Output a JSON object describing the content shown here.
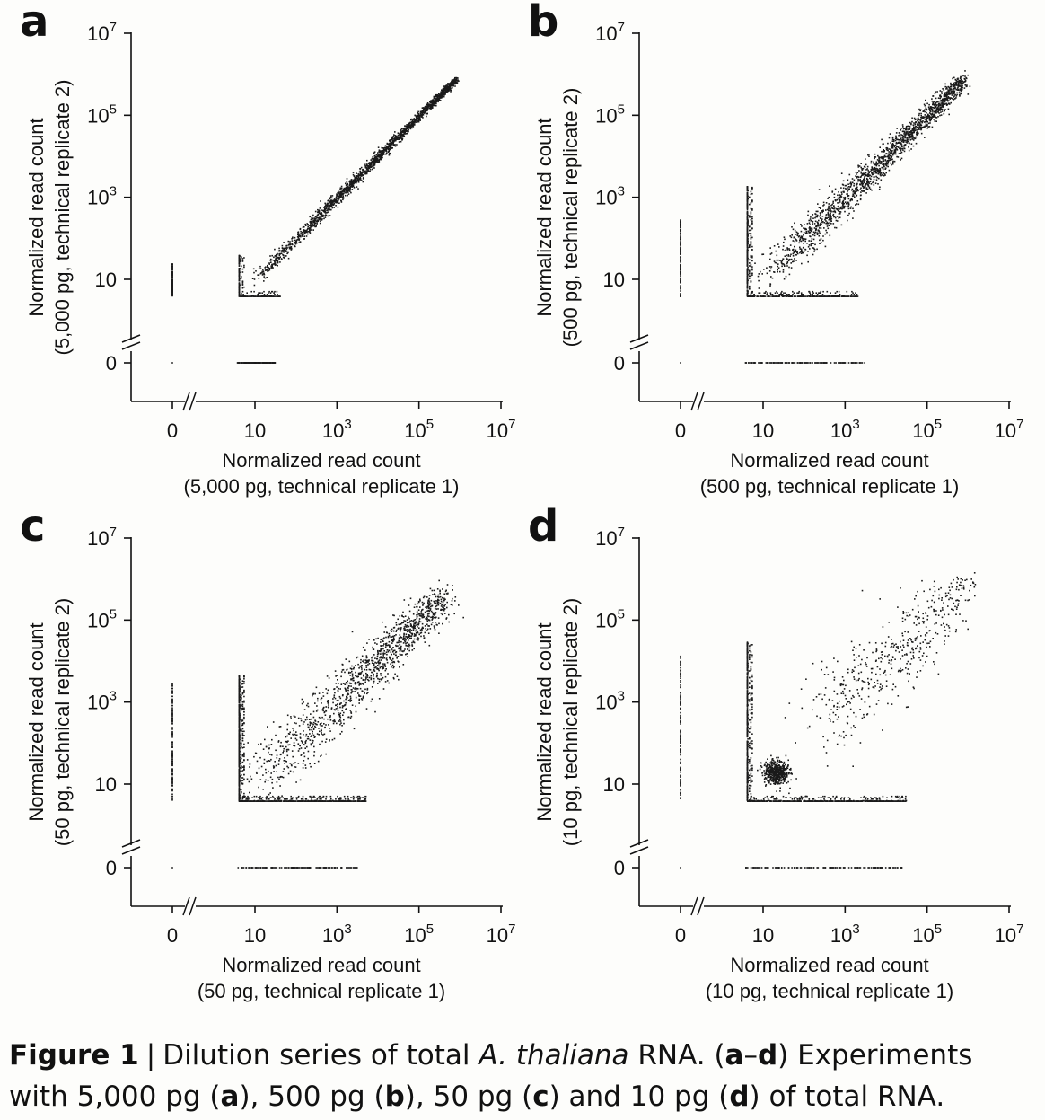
{
  "caption": {
    "label": "Figure 1",
    "separator": "|",
    "text_before_species": "Dilution series of total",
    "species": "A. thaliana",
    "text_after_species": "RNA. (",
    "range_a": "a",
    "range_dash": "–",
    "range_d": "d",
    "text_mid": ") Experiments with 5,000 pg (",
    "p_a": "a",
    "t1": "), 500 pg (",
    "p_b": "b",
    "t2": "), 50 pg (",
    "p_c": "c",
    "t3": ") and 10 pg (",
    "p_d": "d",
    "t4": ") of total RNA."
  },
  "chart_data": [
    {
      "panel": "a",
      "type": "scatter",
      "xlabel": [
        "Normalized read count",
        "(5,000 pg, technical replicate 1)"
      ],
      "ylabel": [
        "Normalized read count",
        "(5,000 pg, technical replicate 2)"
      ],
      "scale": "log10 with zero break",
      "xlim": [
        0,
        10000000
      ],
      "ylim": [
        0,
        10000000
      ],
      "x_ticks": [
        "0",
        "10",
        "10^3",
        "10^5",
        "10^7"
      ],
      "y_ticks": [
        "0",
        "10",
        "10^3",
        "10^5",
        "10^7"
      ],
      "point_cloud": {
        "diagonal_max": 800000,
        "low_count_spread_max": 40,
        "zero_row_max": 30,
        "zero_col_max": 25,
        "density": "tight along diagonal"
      }
    },
    {
      "panel": "b",
      "type": "scatter",
      "xlabel": [
        "Normalized read count",
        "(500 pg, technical replicate 1)"
      ],
      "ylabel": [
        "Normalized read count",
        "(500 pg, technical replicate 2)"
      ],
      "scale": "log10 with zero break",
      "xlim": [
        0,
        10000000
      ],
      "ylim": [
        0,
        10000000
      ],
      "x_ticks": [
        "0",
        "10",
        "10^3",
        "10^5",
        "10^7"
      ],
      "y_ticks": [
        "0",
        "10",
        "10^3",
        "10^5",
        "10^7"
      ],
      "point_cloud": {
        "diagonal_max": 800000,
        "low_count_spread_max": 2000,
        "zero_row_max": 3000,
        "zero_col_max": 300,
        "density": "moderate spread at low counts"
      }
    },
    {
      "panel": "c",
      "type": "scatter",
      "xlabel": [
        "Normalized read count",
        "(50 pg, technical replicate 1)"
      ],
      "ylabel": [
        "Normalized read count",
        "(50 pg, technical replicate 2)"
      ],
      "scale": "log10 with zero break",
      "xlim": [
        0,
        10000000
      ],
      "ylim": [
        0,
        10000000
      ],
      "x_ticks": [
        "0",
        "10",
        "10^3",
        "10^5",
        "10^7"
      ],
      "y_ticks": [
        "0",
        "10",
        "10^3",
        "10^5",
        "10^7"
      ],
      "point_cloud": {
        "diagonal_max": 400000,
        "low_count_spread_max": 5000,
        "zero_row_max": 3000,
        "zero_col_max": 3000,
        "density": "wide spread below 10^4"
      }
    },
    {
      "panel": "d",
      "type": "scatter",
      "xlabel": [
        "Normalized read count",
        "(10 pg, technical replicate 1)"
      ],
      "ylabel": [
        "Normalized read count",
        "(10 pg, technical replicate 2)"
      ],
      "scale": "log10 with zero break",
      "xlim": [
        0,
        10000000
      ],
      "ylim": [
        0,
        10000000
      ],
      "x_ticks": [
        "0",
        "10",
        "10^3",
        "10^5",
        "10^7"
      ],
      "y_ticks": [
        "0",
        "10",
        "10^3",
        "10^5",
        "10^7"
      ],
      "point_cloud": {
        "diagonal_max": 1000000,
        "low_count_spread_max": 30000,
        "zero_row_max": 30000,
        "zero_col_max": 15000,
        "density": "very broad, clusters near (20,20) and (10^4,10^4)"
      }
    }
  ],
  "colors": {
    "points": "#1a1a1a",
    "axes": "#111111",
    "background": "#fdfdfb"
  }
}
